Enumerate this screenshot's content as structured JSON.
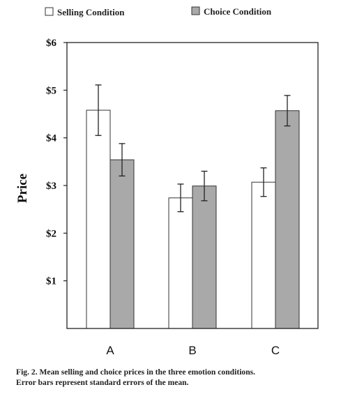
{
  "chart_data": {
    "type": "bar",
    "categories": [
      "A",
      "B",
      "C"
    ],
    "series": [
      {
        "name": "Selling Condition",
        "color": "#ffffff",
        "values": [
          4.58,
          2.74,
          3.07
        ],
        "errors": [
          0.53,
          0.29,
          0.3
        ]
      },
      {
        "name": "Choice Condition",
        "color": "#a9a9a9",
        "values": [
          3.54,
          2.99,
          4.57
        ],
        "errors": [
          0.34,
          0.31,
          0.32
        ]
      }
    ],
    "ylabel": "Price",
    "yticks": [
      "$1",
      "$2",
      "$3",
      "$4",
      "$5",
      "$6"
    ],
    "ytick_values": [
      1,
      2,
      3,
      4,
      5,
      6
    ],
    "ylim": [
      0,
      6
    ],
    "grid": false,
    "legend": "top"
  },
  "caption": {
    "line1": "Fig. 2. Mean selling and choice prices in the three emotion conditions.",
    "line2": "Error bars represent standard errors of the mean."
  }
}
